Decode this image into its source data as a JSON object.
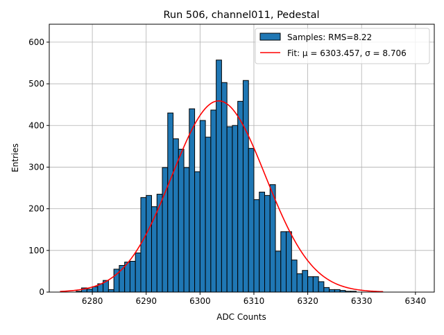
{
  "chart_data": {
    "type": "bar",
    "title": "Run 506, channel011, Pedestal",
    "xlabel": "ADC Counts",
    "ylabel": "Entries",
    "xlim": [
      6272,
      6343.5
    ],
    "ylim": [
      0,
      643
    ],
    "xticks": [
      6280,
      6290,
      6300,
      6310,
      6320,
      6330,
      6340
    ],
    "yticks": [
      0,
      100,
      200,
      300,
      400,
      500,
      600
    ],
    "grid": true,
    "legend_position": "top-right",
    "bin_start": 6277,
    "bin_width": 1,
    "histogram": {
      "name": "Samples: RMS=8.22",
      "color": "#1f77b4",
      "values": [
        2,
        10,
        7,
        13,
        20,
        28,
        6,
        55,
        64,
        72,
        74,
        94,
        227,
        232,
        205,
        235,
        299,
        430,
        368,
        343,
        299,
        440,
        289,
        412,
        372,
        437,
        557,
        503,
        397,
        400,
        458,
        508,
        345,
        222,
        240,
        232,
        258,
        98,
        145,
        145,
        77,
        44,
        52,
        37,
        37,
        25,
        11,
        6,
        6,
        4,
        2,
        2
      ]
    },
    "fit": {
      "name": "Fit: μ = 6303.457, σ = 8.706",
      "color": "#ff0000",
      "mu": 6303.457,
      "sigma": 8.706,
      "amplitude": 459,
      "x_range": [
        6274,
        6334
      ]
    }
  }
}
